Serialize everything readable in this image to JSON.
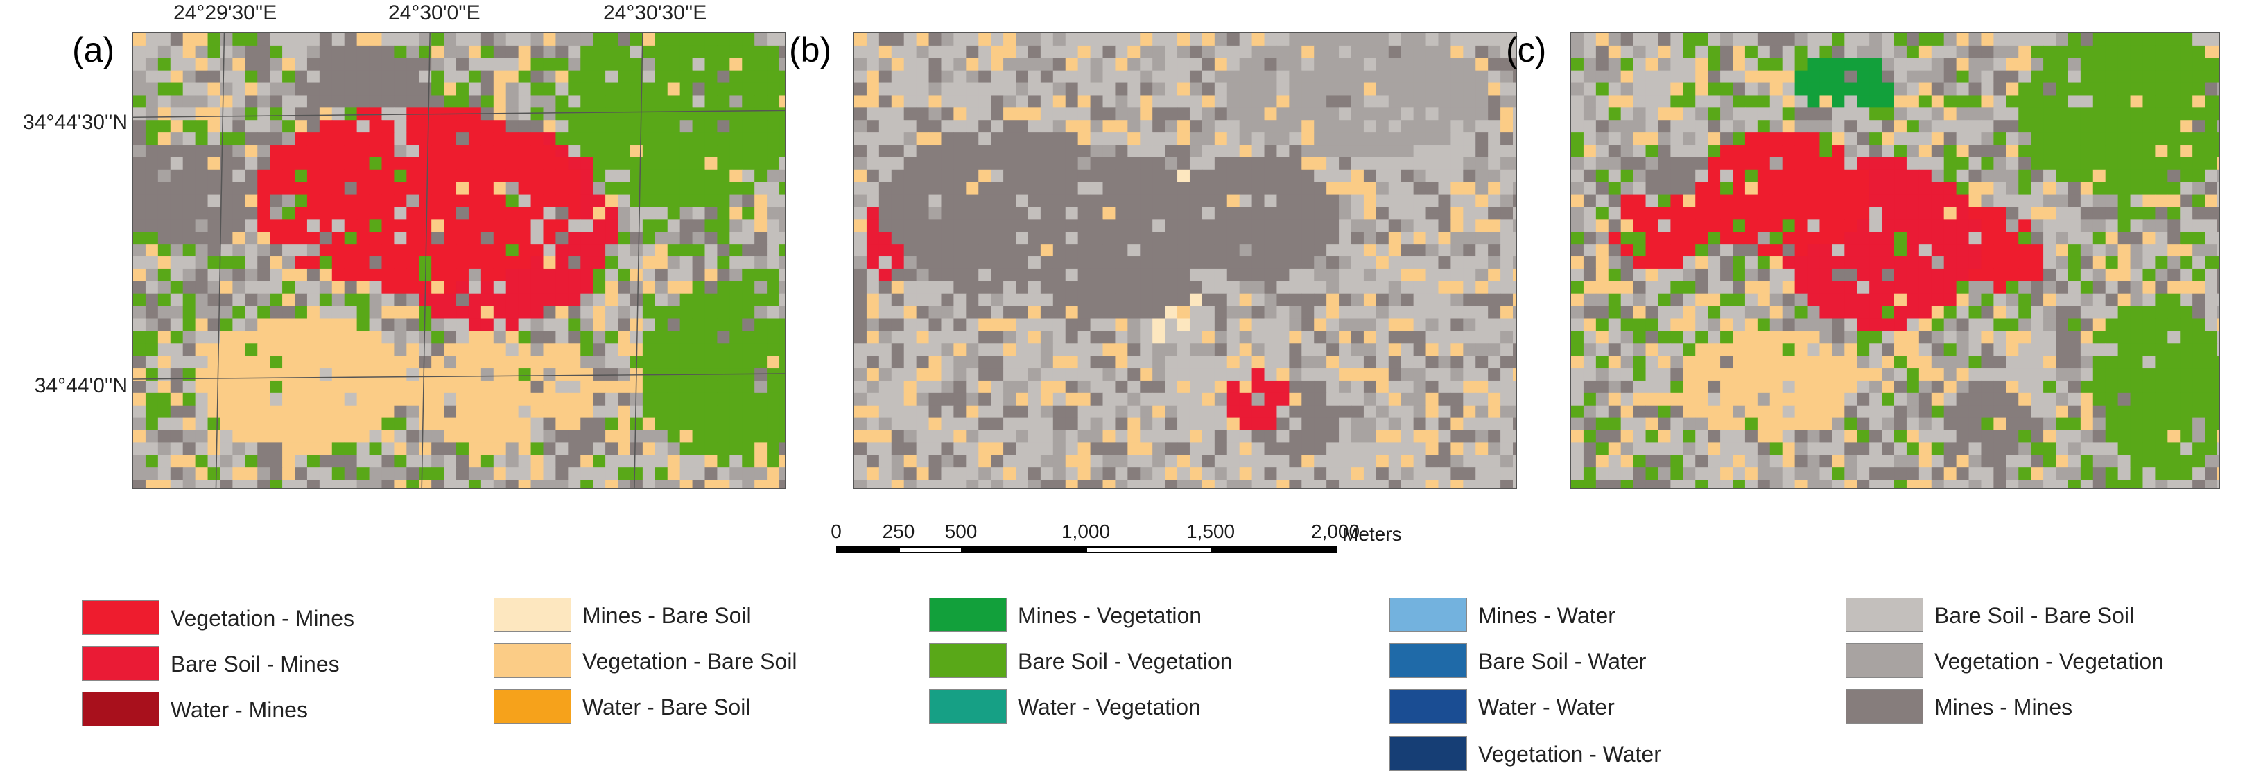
{
  "colors": {
    "vegetation_mines": "#ee1c2e",
    "bare_soil_mines": "#ea1b35",
    "water_mines": "#a8101c",
    "mines_bare_soil": "#fde7bf",
    "vegetation_bare_soil": "#fbcc86",
    "water_bare_soil": "#f6a21b",
    "mines_vegetation": "#12a03b",
    "bare_soil_vegetation": "#59a818",
    "water_vegetation": "#16a085",
    "mines_water": "#73b2de",
    "bare_soil_water": "#1f6aa8",
    "water_water": "#1a4d93",
    "vegetation_water": "#163e75",
    "bare_soil_bare_soil": "#c3bfbc",
    "vegetation_vegetation": "#a8a3a1",
    "mines_mines": "#867d7c"
  },
  "coordinates": {
    "lon": [
      "24°29'30''E",
      "24°30'0''E",
      "24°30'30''E"
    ],
    "lat": [
      "34°44'30''N",
      "34°44'0''N"
    ]
  },
  "panels": [
    {
      "label": "(a)"
    },
    {
      "label": "(b)"
    },
    {
      "label": "(c)"
    }
  ],
  "scale": {
    "ticks": [
      "0",
      "250",
      "500",
      "1,000",
      "1,500",
      "2,000"
    ],
    "unit": "Meters"
  },
  "legend": [
    {
      "label": "Vegetation - Mines",
      "color_key": "vegetation_mines"
    },
    {
      "label": "Bare Soil - Mines",
      "color_key": "bare_soil_mines"
    },
    {
      "label": "Water - Mines",
      "color_key": "water_mines"
    },
    {
      "label": "Mines - Bare Soil",
      "color_key": "mines_bare_soil"
    },
    {
      "label": "Vegetation - Bare Soil",
      "color_key": "vegetation_bare_soil"
    },
    {
      "label": "Water - Bare Soil",
      "color_key": "water_bare_soil"
    },
    {
      "label": "Mines - Vegetation",
      "color_key": "mines_vegetation"
    },
    {
      "label": "Bare Soil - Vegetation",
      "color_key": "bare_soil_vegetation"
    },
    {
      "label": "Water - Vegetation",
      "color_key": "water_vegetation"
    },
    {
      "label": "Mines - Water",
      "color_key": "mines_water"
    },
    {
      "label": "Bare Soil - Water",
      "color_key": "bare_soil_water"
    },
    {
      "label": "Water - Water",
      "color_key": "water_water"
    },
    {
      "label": "Vegetation -  Water",
      "color_key": "vegetation_water"
    },
    {
      "label": "Bare Soil - Bare Soil",
      "color_key": "bare_soil_bare_soil"
    },
    {
      "label": "Vegetation - Vegetation",
      "color_key": "vegetation_vegetation"
    },
    {
      "label": "Mines - Mines",
      "color_key": "mines_mines"
    }
  ]
}
